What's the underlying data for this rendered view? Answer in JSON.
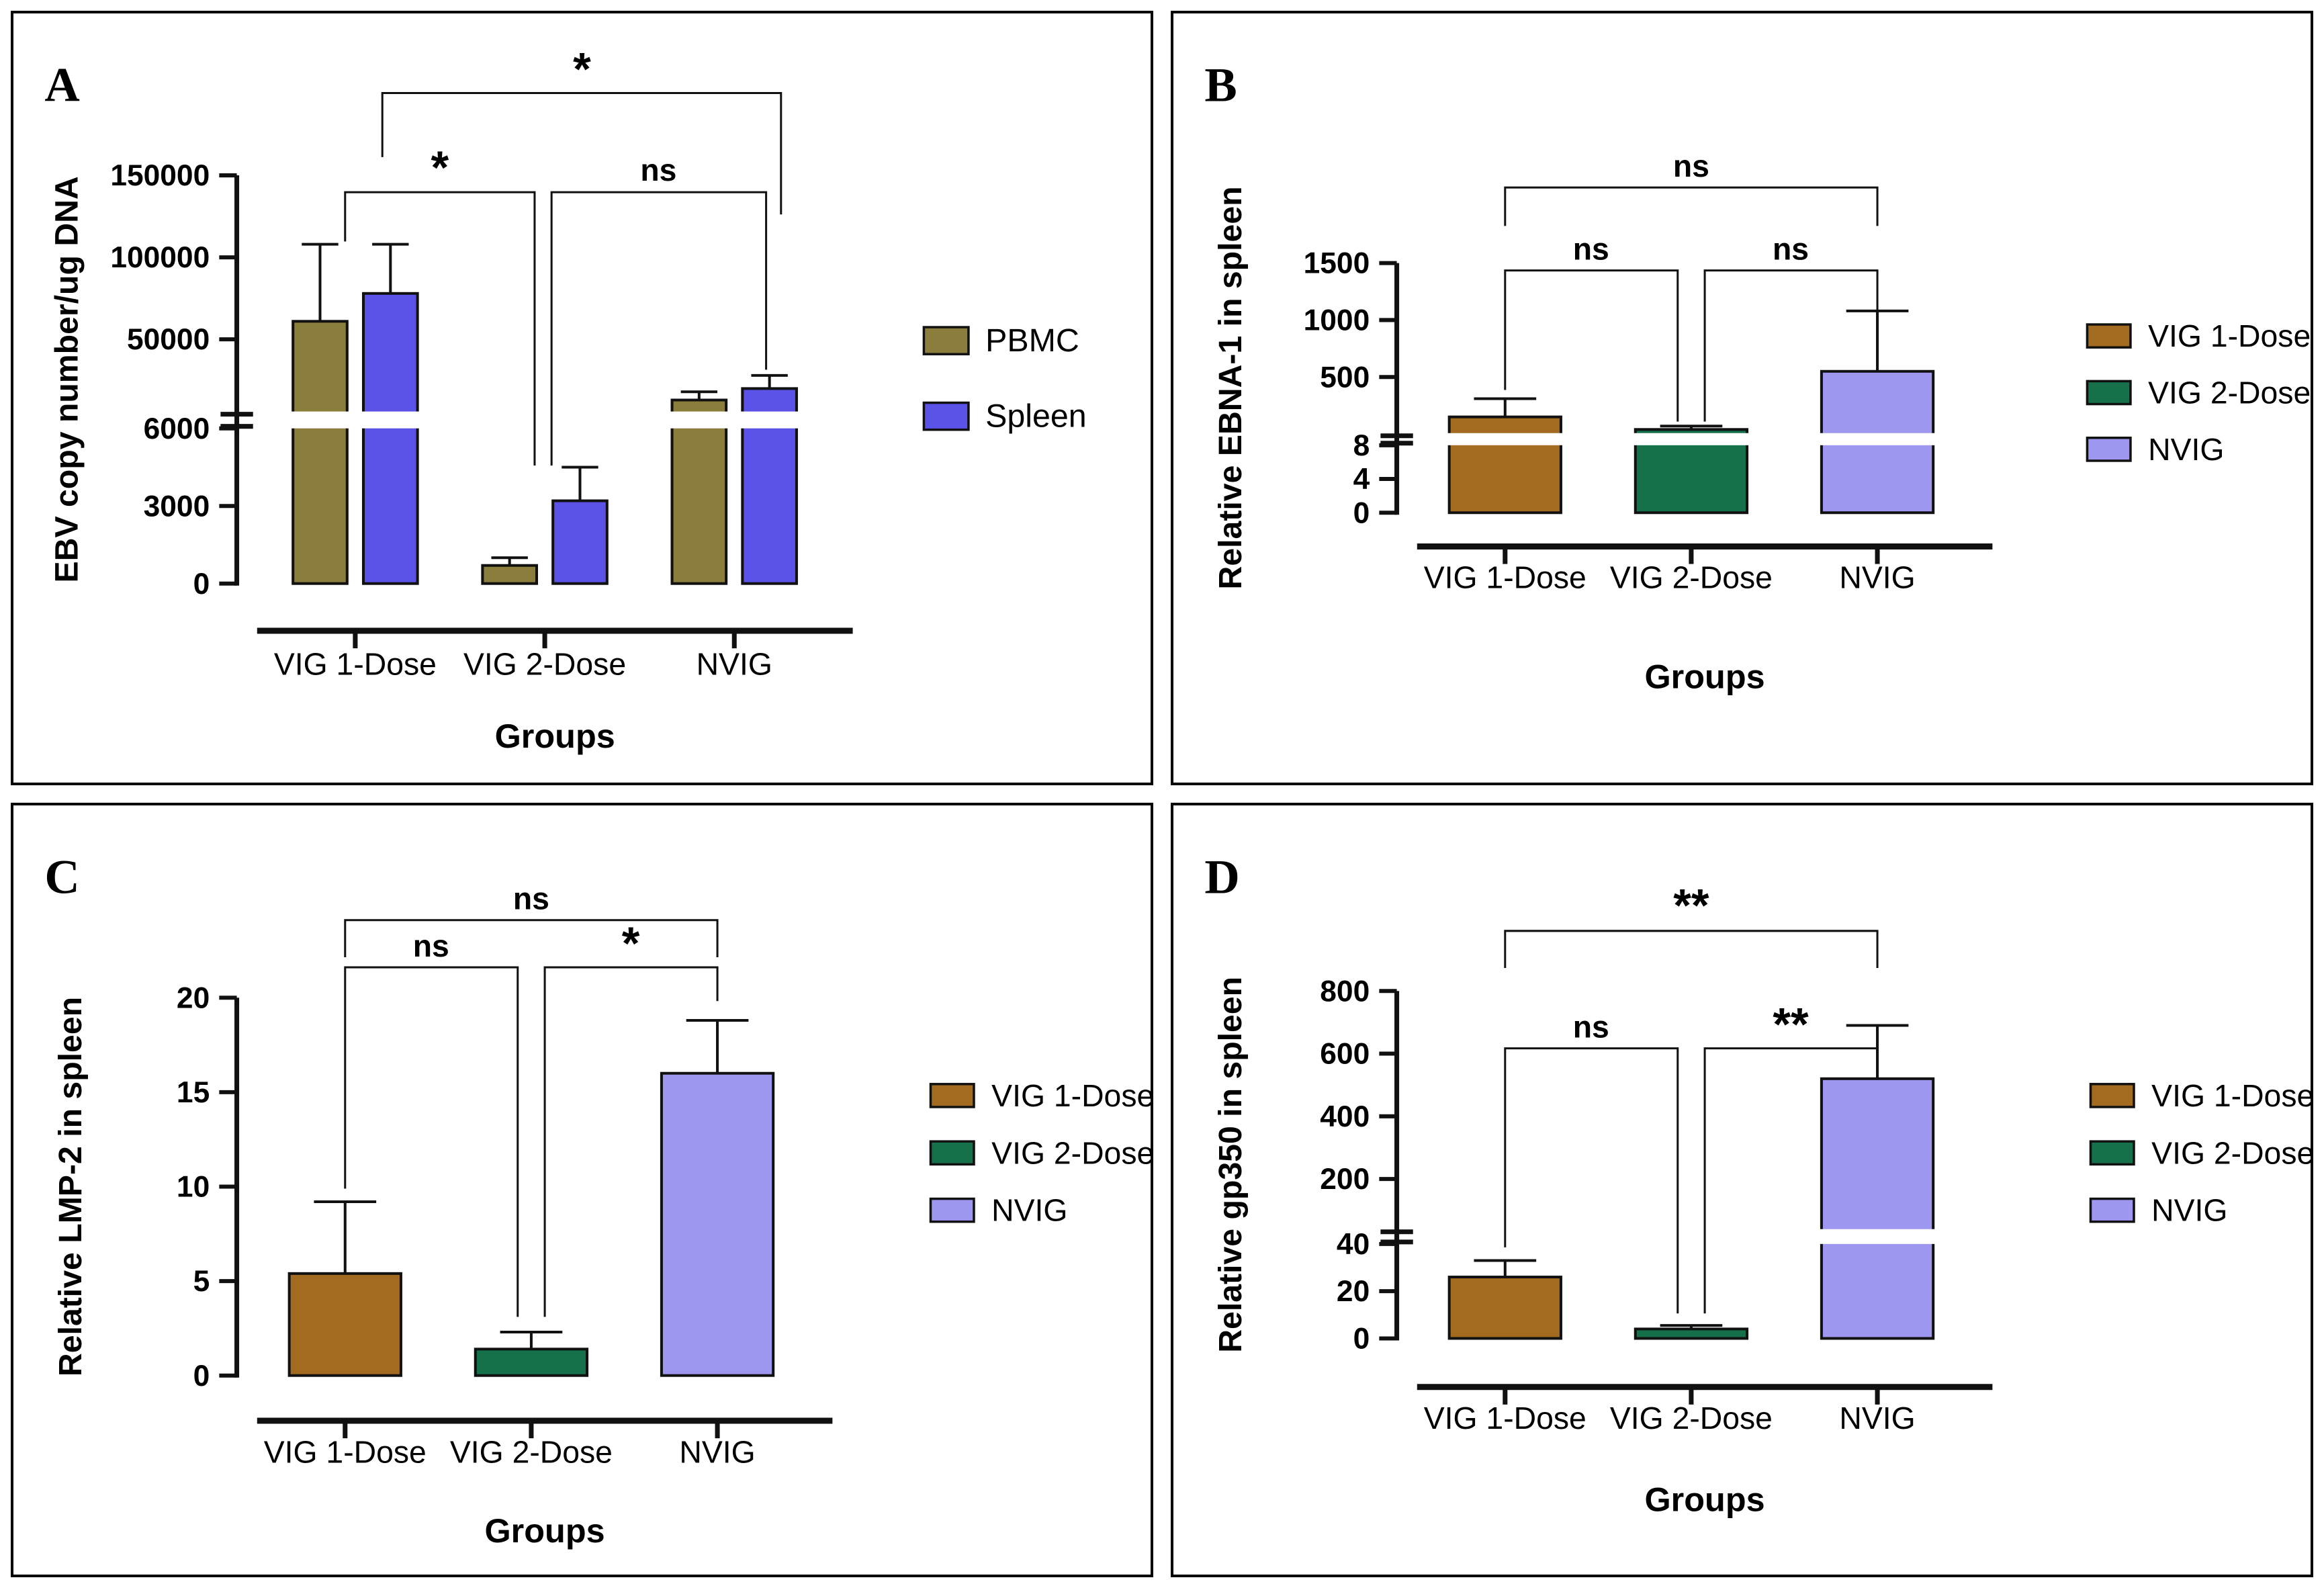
{
  "figure": {
    "background": "#ffffff",
    "panel_border": "#000000",
    "xlabel": "Groups",
    "categories": [
      "VIG 1-Dose",
      "VIG 2-Dose",
      "NVIG"
    ],
    "significance_levels": {
      "not_significant": "ns",
      "p_lt_005": "*",
      "p_lt_001": "**"
    }
  },
  "chart_data": [
    {
      "label": "A",
      "type": "bar",
      "ylabel": "EBV copy number/ug DNA",
      "xlabel": "Groups",
      "categories": [
        "VIG 1-Dose",
        "VIG 2-Dose",
        "NVIG"
      ],
      "axis": {
        "broken": true,
        "segments": [
          {
            "min": 0,
            "max": 6000,
            "ticks": [
              0,
              3000,
              6000
            ]
          },
          {
            "min": 6000,
            "max": 150000,
            "ticks": [
              50000,
              100000,
              150000
            ]
          }
        ]
      },
      "legend": [
        {
          "label": "PBMC",
          "color": "#8B7D3B"
        },
        {
          "label": "Spleen",
          "color": "#5B52E8"
        }
      ],
      "bars": [
        {
          "group": "VIG 1-Dose",
          "series": "PBMC",
          "color": "#8B7D3B",
          "value": 61000,
          "err_up": 47000
        },
        {
          "group": "VIG 1-Dose",
          "series": "Spleen",
          "color": "#5B52E8",
          "value": 78000,
          "err_up": 30000
        },
        {
          "group": "VIG 2-Dose",
          "series": "PBMC",
          "color": "#8B7D3B",
          "value": 700,
          "err_up": 300
        },
        {
          "group": "VIG 2-Dose",
          "series": "Spleen",
          "color": "#5B52E8",
          "value": 3200,
          "err_up": 1300
        },
        {
          "group": "NVIG",
          "series": "PBMC",
          "color": "#8B7D3B",
          "value": 13000,
          "err_up": 5000
        },
        {
          "group": "NVIG",
          "series": "Spleen",
          "color": "#5B52E8",
          "value": 20000,
          "err_up": 8000
        }
      ],
      "significance": [
        {
          "from": "VIG 1-Dose",
          "to": "VIG 2-Dose",
          "label": "*"
        },
        {
          "from": "VIG 2-Dose",
          "to": "NVIG",
          "label": "ns"
        },
        {
          "from": "VIG 1-Dose",
          "to": "NVIG",
          "label": "*"
        }
      ]
    },
    {
      "label": "B",
      "type": "bar",
      "ylabel": "Relative EBNA-1 in spleen",
      "xlabel": "Groups",
      "categories": [
        "VIG 1-Dose",
        "VIG 2-Dose",
        "NVIG"
      ],
      "axis": {
        "broken": true,
        "segments": [
          {
            "min": 0,
            "max": 8,
            "ticks": [
              0,
              4,
              8
            ]
          },
          {
            "min": 8,
            "max": 1500,
            "ticks": [
              500,
              1000,
              1500
            ]
          }
        ]
      },
      "legend": [
        {
          "label": "VIG 1-Dose",
          "color": "#A26B20"
        },
        {
          "label": "VIG 2-Dose",
          "color": "#16714B"
        },
        {
          "label": "NVIG",
          "color": "#9D97F0"
        }
      ],
      "bars": [
        {
          "group": "VIG 1-Dose",
          "series": "VIG 1-Dose",
          "color": "#A26B20",
          "value": 150,
          "err_up": 160
        },
        {
          "group": "VIG 2-Dose",
          "series": "VIG 2-Dose",
          "color": "#16714B",
          "value": 40,
          "err_up": 30
        },
        {
          "group": "NVIG",
          "series": "NVIG",
          "color": "#9D97F0",
          "value": 550,
          "err_up": 530
        }
      ],
      "significance": [
        {
          "from": "VIG 1-Dose",
          "to": "VIG 2-Dose",
          "label": "ns"
        },
        {
          "from": "VIG 2-Dose",
          "to": "NVIG",
          "label": "ns"
        },
        {
          "from": "VIG 1-Dose",
          "to": "NVIG",
          "label": "ns"
        }
      ]
    },
    {
      "label": "C",
      "type": "bar",
      "ylabel": "Relative LMP-2 in spleen",
      "xlabel": "Groups",
      "categories": [
        "VIG 1-Dose",
        "VIG 2-Dose",
        "NVIG"
      ],
      "axis": {
        "broken": false,
        "segments": [
          {
            "min": 0,
            "max": 20,
            "ticks": [
              0,
              5,
              10,
              15,
              20
            ]
          }
        ]
      },
      "legend": [
        {
          "label": "VIG 1-Dose",
          "color": "#A26B20"
        },
        {
          "label": "VIG 2-Dose",
          "color": "#16714B"
        },
        {
          "label": "NVIG",
          "color": "#9D97F0"
        }
      ],
      "bars": [
        {
          "group": "VIG 1-Dose",
          "series": "VIG 1-Dose",
          "color": "#A26B20",
          "value": 5.4,
          "err_up": 3.8
        },
        {
          "group": "VIG 2-Dose",
          "series": "VIG 2-Dose",
          "color": "#16714B",
          "value": 1.4,
          "err_up": 0.9
        },
        {
          "group": "NVIG",
          "series": "NVIG",
          "color": "#9D97F0",
          "value": 16,
          "err_up": 2.8
        }
      ],
      "significance": [
        {
          "from": "VIG 1-Dose",
          "to": "VIG 2-Dose",
          "label": "ns"
        },
        {
          "from": "VIG 2-Dose",
          "to": "NVIG",
          "label": "*"
        },
        {
          "from": "VIG 1-Dose",
          "to": "NVIG",
          "label": "ns"
        }
      ]
    },
    {
      "label": "D",
      "type": "bar",
      "ylabel": "Relative gp350 in spleen",
      "xlabel": "Groups",
      "categories": [
        "VIG 1-Dose",
        "VIG 2-Dose",
        "NVIG"
      ],
      "axis": {
        "broken": true,
        "segments": [
          {
            "min": 0,
            "max": 40,
            "ticks": [
              0,
              20,
              40
            ]
          },
          {
            "min": 40,
            "max": 800,
            "ticks": [
              200,
              400,
              600,
              800
            ]
          }
        ]
      },
      "legend": [
        {
          "label": "VIG 1-Dose",
          "color": "#A26B20"
        },
        {
          "label": "VIG 2-Dose",
          "color": "#16714B"
        },
        {
          "label": "NVIG",
          "color": "#9D97F0"
        }
      ],
      "bars": [
        {
          "group": "VIG 1-Dose",
          "series": "VIG 1-Dose",
          "color": "#A26B20",
          "value": 26,
          "err_up": 7
        },
        {
          "group": "VIG 2-Dose",
          "series": "VIG 2-Dose",
          "color": "#16714B",
          "value": 4,
          "err_up": 1.5
        },
        {
          "group": "NVIG",
          "series": "NVIG",
          "color": "#9D97F0",
          "value": 520,
          "err_up": 170
        }
      ],
      "significance": [
        {
          "from": "VIG 1-Dose",
          "to": "VIG 2-Dose",
          "label": "ns"
        },
        {
          "from": "VIG 2-Dose",
          "to": "NVIG",
          "label": "**"
        },
        {
          "from": "VIG 1-Dose",
          "to": "NVIG",
          "label": "**"
        }
      ]
    }
  ]
}
